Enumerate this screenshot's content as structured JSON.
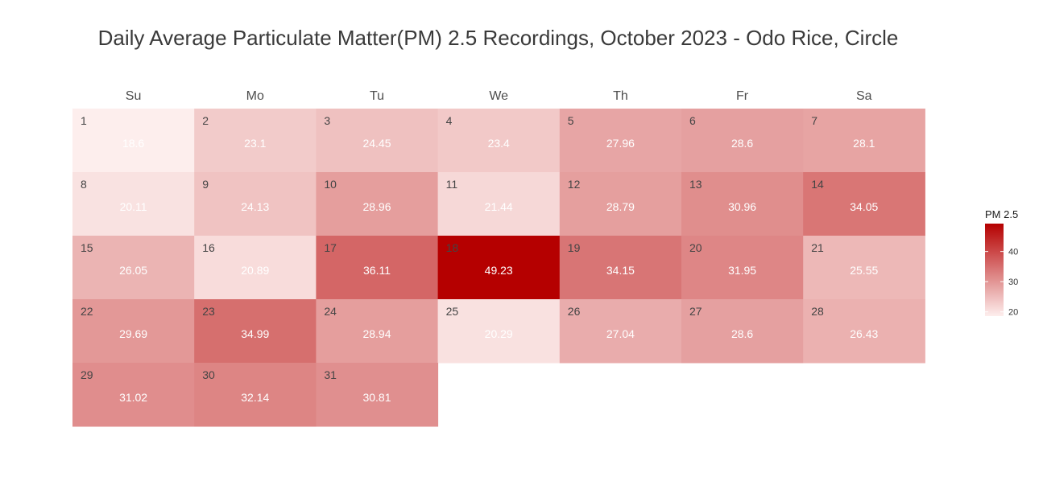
{
  "chart_data": {
    "type": "heatmap",
    "title": "Daily Average Particulate Matter(PM) 2.5 Recordings, October 2023 - Odo Rice, Circle",
    "weekdays": [
      "Su",
      "Mo",
      "Tu",
      "We",
      "Th",
      "Fr",
      "Sa"
    ],
    "first_weekday_index": 0,
    "days": [
      1,
      2,
      3,
      4,
      5,
      6,
      7,
      8,
      9,
      10,
      11,
      12,
      13,
      14,
      15,
      16,
      17,
      18,
      19,
      20,
      21,
      22,
      23,
      24,
      25,
      26,
      27,
      28,
      29,
      30,
      31
    ],
    "values": [
      18.6,
      23.1,
      24.45,
      23.4,
      27.96,
      28.6,
      28.1,
      20.11,
      24.13,
      28.96,
      21.44,
      28.79,
      30.96,
      34.05,
      26.05,
      20.89,
      36.11,
      49.23,
      34.15,
      31.95,
      25.55,
      29.69,
      34.99,
      28.94,
      20.29,
      27.04,
      28.6,
      26.43,
      31.02,
      32.14,
      30.81
    ],
    "legend": {
      "title": "PM 2.5",
      "ticks": [
        20,
        30,
        40
      ],
      "range": [
        18.6,
        49.23
      ],
      "low_color": "#fdeeed",
      "high_color": "#b50000"
    }
  }
}
